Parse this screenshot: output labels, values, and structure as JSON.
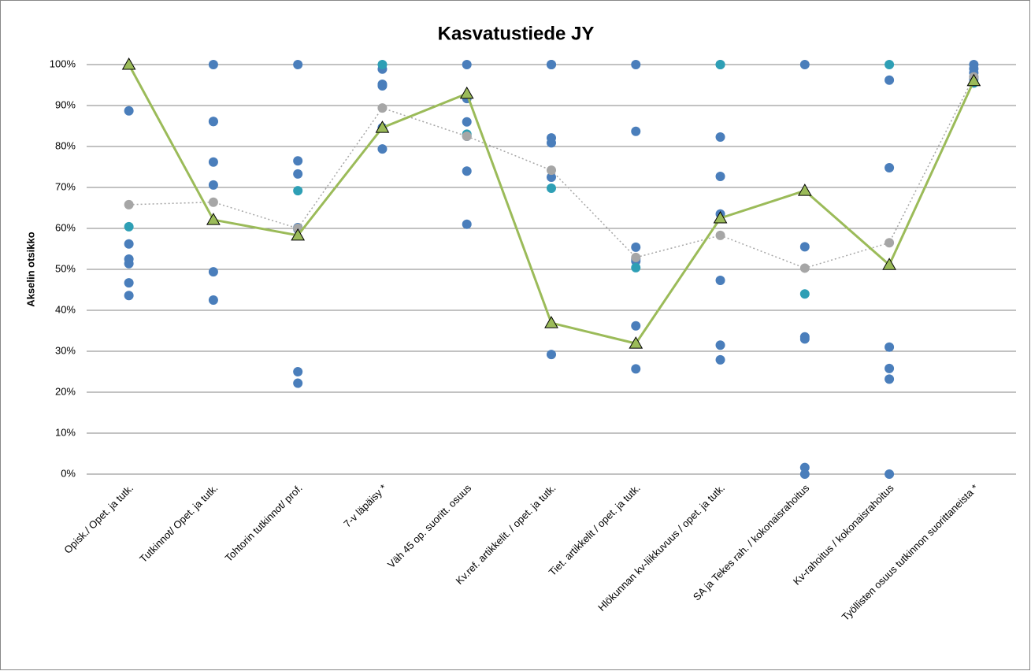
{
  "chart_data": {
    "type": "dot-line",
    "title": "Kasvatustiede JY",
    "y_label": "Akselin otsikko",
    "categories": [
      "Opisk./ Opet. ja tutk.",
      "Tutkinnot/ Opet. ja tutk.",
      "Tohtorin tutkinnot/ prof.",
      "7-v läpäisy *",
      "Väh 45 op. suoritt. osuus",
      "Kv.ref. artikkelit. / opet. ja tutk.",
      "Tiet. artikkelit / opet. ja tutk.",
      "Hlökunnan kv-liikkuvuus / opet. ja tutk.",
      "SA ja Tekes rah. / kokonaisrahoitus",
      "Kv-rahoitus / kokonaisrahoitus",
      "Työllisten osuus tutkinnon suorittaneista *"
    ],
    "ylim": [
      0,
      100
    ],
    "yticks": [
      {
        "value": 0,
        "label": "0%"
      },
      {
        "value": 10,
        "label": "10%"
      },
      {
        "value": 20,
        "label": "20%"
      },
      {
        "value": 30,
        "label": "30%"
      },
      {
        "value": 40,
        "label": "40%"
      },
      {
        "value": 50,
        "label": "50%"
      },
      {
        "value": 60,
        "label": "60%"
      },
      {
        "value": 70,
        "label": "70%"
      },
      {
        "value": 80,
        "label": "80%"
      },
      {
        "value": 90,
        "label": "90%"
      },
      {
        "value": 100,
        "label": "100%"
      }
    ],
    "grid": true,
    "series": [
      {
        "style": "dot",
        "color": "#4a7ebb",
        "values": [
          88.7,
          100,
          100,
          98.9,
          100,
          100,
          100,
          100,
          100,
          96.2,
          100
        ]
      },
      {
        "style": "dot",
        "color": "#4a7ebb",
        "values": [
          56.2,
          86.1,
          76.5,
          95.2,
          91.7,
          100,
          83.7,
          82.3,
          55.5,
          74.8,
          99
        ]
      },
      {
        "style": "dot",
        "color": "#4a7ebb",
        "values": [
          52.5,
          86.1,
          73.3,
          94.8,
          86,
          82.1,
          55.4,
          72.7,
          33.5,
          31,
          98
        ]
      },
      {
        "style": "dot",
        "color": "#4a7ebb",
        "values": [
          51.4,
          76.2,
          60.2,
          84.6,
          82.5,
          80.9,
          52.5,
          63.5,
          33,
          25.8,
          97
        ]
      },
      {
        "style": "dot",
        "color": "#4a7ebb",
        "values": [
          46.7,
          70.6,
          59.8,
          79.4,
          74,
          72.5,
          52,
          47.3,
          1.6,
          23.2,
          96.5
        ]
      },
      {
        "style": "dot",
        "color": "#4a7ebb",
        "values": [
          43.6,
          49.4,
          25,
          null,
          61,
          29.2,
          36.2,
          31.5,
          0,
          0,
          null
        ]
      },
      {
        "style": "dot",
        "color": "#4a7ebb",
        "values": [
          null,
          42.5,
          22.2,
          null,
          null,
          null,
          25.7,
          27.9,
          null,
          null,
          null
        ]
      },
      {
        "style": "dot",
        "color": "#2e9fb5",
        "values": [
          60.4,
          null,
          69.2,
          100,
          83,
          69.8,
          50.4,
          100,
          44,
          100,
          95.5
        ]
      },
      {
        "style": "line-dot",
        "color": "#a6a6a6",
        "values": [
          65.8,
          66.4,
          60,
          89.4,
          82.5,
          74.2,
          52.9,
          58.3,
          50.3,
          56.5,
          97
        ]
      },
      {
        "style": "line-triangle",
        "color": "#9bbb59",
        "values": [
          100,
          62.1,
          58.3,
          84.6,
          92.9,
          36.9,
          31.9,
          62.5,
          69.2,
          51.1,
          96
        ]
      }
    ]
  }
}
